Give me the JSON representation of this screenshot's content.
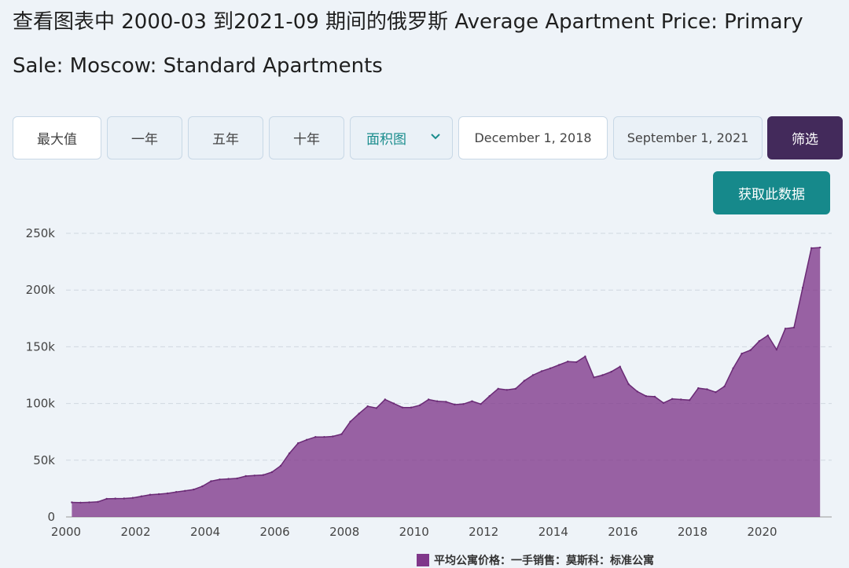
{
  "title": "查看图表中 2000-03 到2021-09 期间的俄罗斯 Average Apartment Price: Primary Sale: Moscow: Standard Apartments",
  "toolbar": {
    "max_label": "最大值",
    "one_year_label": "一年",
    "five_year_label": "五年",
    "ten_year_label": "十年",
    "chart_type_label": "面积图",
    "start_date": "December 1, 2018",
    "end_date": "September 1, 2021",
    "filter_label": "筛选",
    "get_data_label": "获取此数据"
  },
  "colors": {
    "area_fill": "#80378a",
    "filter_button": "#432a5b",
    "get_data_button": "#16898b",
    "select_text": "#1a8d8d"
  },
  "chart_data": {
    "type": "area",
    "x_tick_labels": [
      "2000",
      "2002",
      "2004",
      "2006",
      "2008",
      "2010",
      "2012",
      "2014",
      "2016",
      "2018",
      "2020"
    ],
    "y_tick_labels": [
      "0",
      "50k",
      "100k",
      "150k",
      "200k",
      "250k"
    ],
    "y_ticks": [
      0,
      50000,
      100000,
      150000,
      200000,
      250000
    ],
    "xlim": [
      "2000-01",
      "2022-01"
    ],
    "ylim": [
      0,
      250000
    ],
    "grid": true,
    "legend_position": "bottom",
    "series": [
      {
        "name": "平均公寓价格：一手销售：莫斯科：标准公寓",
        "points": [
          [
            "2000-03",
            12800
          ],
          [
            "2000-06",
            12600
          ],
          [
            "2000-09",
            12900
          ],
          [
            "2000-12",
            13300
          ],
          [
            "2001-03",
            16000
          ],
          [
            "2001-06",
            16200
          ],
          [
            "2001-09",
            16300
          ],
          [
            "2001-12",
            16800
          ],
          [
            "2002-03",
            18200
          ],
          [
            "2002-06",
            19600
          ],
          [
            "2002-09",
            20100
          ],
          [
            "2002-12",
            20800
          ],
          [
            "2003-03",
            22000
          ],
          [
            "2003-06",
            23000
          ],
          [
            "2003-09",
            24200
          ],
          [
            "2003-12",
            27000
          ],
          [
            "2004-03",
            31500
          ],
          [
            "2004-06",
            33000
          ],
          [
            "2004-09",
            33500
          ],
          [
            "2004-12",
            34000
          ],
          [
            "2005-03",
            36000
          ],
          [
            "2005-06",
            36500
          ],
          [
            "2005-09",
            37000
          ],
          [
            "2005-12",
            39500
          ],
          [
            "2006-03",
            45000
          ],
          [
            "2006-06",
            56000
          ],
          [
            "2006-09",
            65000
          ],
          [
            "2006-12",
            68000
          ],
          [
            "2007-03",
            70500
          ],
          [
            "2007-06",
            70500
          ],
          [
            "2007-09",
            71000
          ],
          [
            "2007-12",
            73000
          ],
          [
            "2008-03",
            84000
          ],
          [
            "2008-06",
            91000
          ],
          [
            "2008-09",
            97500
          ],
          [
            "2008-12",
            96000
          ],
          [
            "2009-03",
            103500
          ],
          [
            "2009-06",
            100000
          ],
          [
            "2009-09",
            96500
          ],
          [
            "2009-12",
            96500
          ],
          [
            "2010-03",
            98500
          ],
          [
            "2010-06",
            103500
          ],
          [
            "2010-09",
            102000
          ],
          [
            "2010-12",
            101500
          ],
          [
            "2011-03",
            99000
          ],
          [
            "2011-06",
            99500
          ],
          [
            "2011-09",
            102000
          ],
          [
            "2011-12",
            99500
          ],
          [
            "2012-03",
            106500
          ],
          [
            "2012-06",
            113000
          ],
          [
            "2012-09",
            112000
          ],
          [
            "2012-12",
            113000
          ],
          [
            "2013-03",
            120000
          ],
          [
            "2013-06",
            125000
          ],
          [
            "2013-09",
            128500
          ],
          [
            "2013-12",
            131000
          ],
          [
            "2014-03",
            134000
          ],
          [
            "2014-06",
            137000
          ],
          [
            "2014-09",
            136500
          ],
          [
            "2014-12",
            141500
          ],
          [
            "2015-03",
            123000
          ],
          [
            "2015-06",
            125000
          ],
          [
            "2015-09",
            128000
          ],
          [
            "2015-12",
            132500
          ],
          [
            "2016-03",
            117000
          ],
          [
            "2016-06",
            110500
          ],
          [
            "2016-09",
            106500
          ],
          [
            "2016-12",
            106000
          ],
          [
            "2017-03",
            100500
          ],
          [
            "2017-06",
            104000
          ],
          [
            "2017-09",
            103500
          ],
          [
            "2017-12",
            103000
          ],
          [
            "2018-03",
            113500
          ],
          [
            "2018-06",
            112500
          ],
          [
            "2018-09",
            110000
          ],
          [
            "2018-12",
            115000
          ],
          [
            "2019-03",
            131000
          ],
          [
            "2019-06",
            144000
          ],
          [
            "2019-09",
            147000
          ],
          [
            "2019-12",
            155000
          ],
          [
            "2020-03",
            160000
          ],
          [
            "2020-06",
            147500
          ],
          [
            "2020-09",
            166000
          ],
          [
            "2020-12",
            167000
          ],
          [
            "2021-03",
            202000
          ],
          [
            "2021-06",
            237000
          ],
          [
            "2021-09",
            237500
          ]
        ]
      }
    ]
  }
}
